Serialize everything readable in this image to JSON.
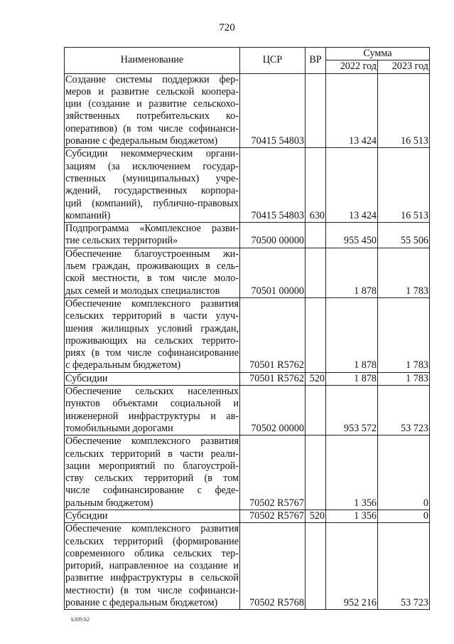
{
  "page_number": "720",
  "header": {
    "name": "Наименование",
    "csr": "ЦСР",
    "vr": "ВР",
    "sum": "Сумма",
    "year1": "2022 год",
    "year2": "2023 год"
  },
  "rows": [
    {
      "lines": [
        "Создание системы поддержки фер-",
        "меров и развитие сельской коопера-",
        "ции (создание и развитие сельскохо-",
        "зяйственных потребительских ко-",
        "оперативов) (в том числе софинанси-",
        "рование с федеральным бюджетом)"
      ],
      "csr": "70415 54803",
      "vr": "",
      "y2022": "13 424",
      "y2023": "16 513"
    },
    {
      "lines": [
        "Субсидии некоммерческим органи-",
        "зациям (за исключением государ-",
        "ственных (муниципальных) учре-",
        "ждений, государственных корпора-",
        "ций (компаний), публично-правовых",
        "компаний)"
      ],
      "csr": "70415 54803",
      "vr": "630",
      "y2022": "13 424",
      "y2023": "16 513"
    },
    {
      "lines": [
        "Подпрограмма «Комплексное разви-",
        "тие сельских территорий»"
      ],
      "csr": "70500 00000",
      "vr": "",
      "y2022": "955 450",
      "y2023": "55 506"
    },
    {
      "lines": [
        "Обеспечение благоустроенным жи-",
        "льем граждан, проживающих в сель-",
        "ской местности, в том числе моло-",
        "дых семей и молодых специалистов"
      ],
      "csr": "70501 00000",
      "vr": "",
      "y2022": "1 878",
      "y2023": "1 783"
    },
    {
      "lines": [
        "Обеспечение комплексного развития",
        "сельских территорий в части улуч-",
        "шения жилищных условий граждан,",
        "проживающих на сельских террито-",
        "риях (в том числе софинансирование",
        "с федеральным бюджетом)"
      ],
      "csr": "70501 R5762",
      "vr": "",
      "y2022": "1 878",
      "y2023": "1 783"
    },
    {
      "lines": [
        "Субсидии"
      ],
      "csr": "70501 R5762",
      "vr": "520",
      "y2022": "1 878",
      "y2023": "1 783"
    },
    {
      "lines": [
        "Обеспечение сельских населенных",
        "пунктов объектами социальной и",
        "инженерной инфраструктуры и ав-",
        "томобильными дорогами"
      ],
      "csr": "70502 00000",
      "vr": "",
      "y2022": "953 572",
      "y2023": "53 723"
    },
    {
      "lines": [
        "Обеспечение комплексного развития",
        "сельских территорий в части реали-",
        "зации мероприятий по благоустрой-",
        "ству сельских территорий (в том",
        "числе софинансирование с феде-",
        "ральным бюджетом)"
      ],
      "csr": "70502 R5767",
      "vr": "",
      "y2022": "1 356",
      "y2023": "0"
    },
    {
      "lines": [
        "Субсидии"
      ],
      "csr": "70502 R5767",
      "vr": "520",
      "y2022": "1 356",
      "y2023": "0"
    },
    {
      "lines": [
        "Обеспечение комплексного развития",
        "сельских территорий (формирование",
        "современного облика сельских тер-",
        "риторий, направленное на создание и",
        "развитие инфраструктуры в сельской",
        "местности) (в том числе софинанси-",
        "рование с федеральным бюджетом)"
      ],
      "csr": "70502 R5768",
      "vr": "",
      "y2022": "952 216",
      "y2023": "53 723"
    }
  ],
  "footer": "k309.h2"
}
